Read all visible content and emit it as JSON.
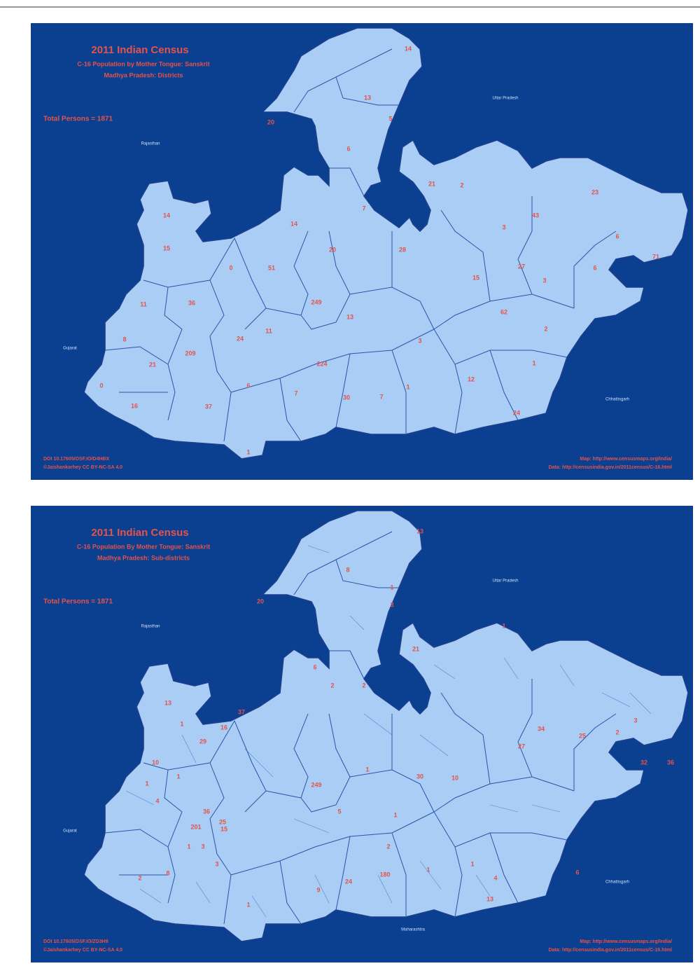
{
  "maps": [
    {
      "title": "2011 Indian Census",
      "subtitle": "C-16 Population by Mother Tongue: Sanskrit",
      "region": "Madhya Pradesh: Districts",
      "total": "Total Persons = 1871",
      "neighbors": [
        "Rajasthan",
        "Uttar Pradesh",
        "Gujarat",
        "Chhattisgarh"
      ],
      "doi": "DOI 10.17605/OSF.IO/D4HBX",
      "license": "©Jaishankarhey CC BY-NC-SA 4.0",
      "map_source": "Map: http://www.censusmaps.org/India/",
      "data_source": "Data: http://censusindia.gov.in/2011census/C-16.html",
      "values": [
        14,
        20,
        13,
        5,
        6,
        7,
        14,
        14,
        15,
        21,
        2,
        3,
        43,
        23,
        6,
        71,
        20,
        28,
        0,
        51,
        15,
        27,
        6,
        3,
        11,
        36,
        249,
        13,
        62,
        2,
        8,
        11,
        24,
        209,
        21,
        224,
        3,
        1,
        7,
        12,
        1,
        0,
        6,
        7,
        30,
        37,
        24,
        16,
        1
      ]
    },
    {
      "title": "2011 Indian Census",
      "subtitle": "C-16 Population By Mother Tongue: Sanskrit",
      "region": "Madhya Pradesh: Sub-districts",
      "total": "Total Persons = 1871",
      "neighbors": [
        "Rajasthan",
        "Uttar Pradesh",
        "Gujarat",
        "Chhattisgarh",
        "Maharashtra"
      ],
      "doi": "DOI 10.17605/OSF.IO/ZD3H9",
      "license": "©Jaishankarhey CC BY-NC-SA 4.0",
      "map_source": "Map: http://www.censusmaps.org/India/",
      "data_source": "Data: http://censusindia.gov.in/2011census/C-16.html",
      "values": [
        13,
        8,
        20,
        1,
        3,
        13,
        21,
        2,
        6,
        2,
        1,
        34,
        25,
        2,
        3,
        32,
        36,
        10,
        27,
        37,
        16,
        1,
        29,
        1,
        4,
        1,
        36,
        25,
        249,
        5,
        1,
        10,
        30,
        15,
        201,
        1,
        3,
        3,
        24,
        180,
        1,
        13,
        4,
        6,
        9,
        1,
        8,
        2,
        1,
        1,
        2
      ]
    }
  ]
}
